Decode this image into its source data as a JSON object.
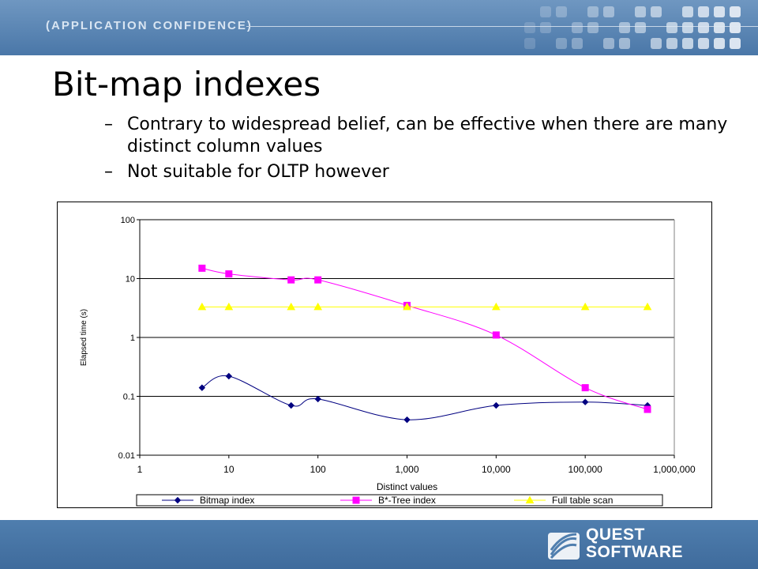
{
  "header": {
    "tagline": "(APPLICATION CONFIDENCE)"
  },
  "slide": {
    "title": "Bit-map indexes",
    "bullets": [
      "Contrary to widespread belief, can be effective when there are many distinct column values",
      "Not suitable for OLTP however"
    ]
  },
  "logo": {
    "line1": "QUEST",
    "line2": "SOFTWARE"
  },
  "chart_data": {
    "type": "line",
    "title": "",
    "xlabel": "Distinct values",
    "ylabel": "Elapsed time (s)",
    "xscale": "log",
    "yscale": "log",
    "xlim": [
      1,
      1000000
    ],
    "ylim": [
      0.01,
      100
    ],
    "x_ticks": [
      "1",
      "10",
      "100",
      "1,000",
      "10,000",
      "100,000",
      "1,000,000"
    ],
    "y_ticks": [
      "0.01",
      "0.1",
      "1",
      "10",
      "100"
    ],
    "grid": "horizontal",
    "legend": "bottom",
    "x": [
      5,
      10,
      50,
      100,
      1000,
      10000,
      100000,
      500000
    ],
    "series": [
      {
        "name": "Bitmap index",
        "color": "#000080",
        "marker": "diamond",
        "values": [
          0.14,
          0.22,
          0.07,
          0.09,
          0.04,
          0.07,
          0.08,
          0.07
        ]
      },
      {
        "name": "B*-Tree index",
        "color": "#ff00ff",
        "marker": "square",
        "values": [
          15,
          12,
          9.5,
          9.5,
          3.5,
          1.1,
          0.14,
          0.06
        ]
      },
      {
        "name": "Full table scan",
        "color": "#ffff00",
        "marker": "triangle",
        "values": [
          3.3,
          3.3,
          3.3,
          3.3,
          3.3,
          3.3,
          3.3,
          3.3
        ]
      }
    ]
  }
}
